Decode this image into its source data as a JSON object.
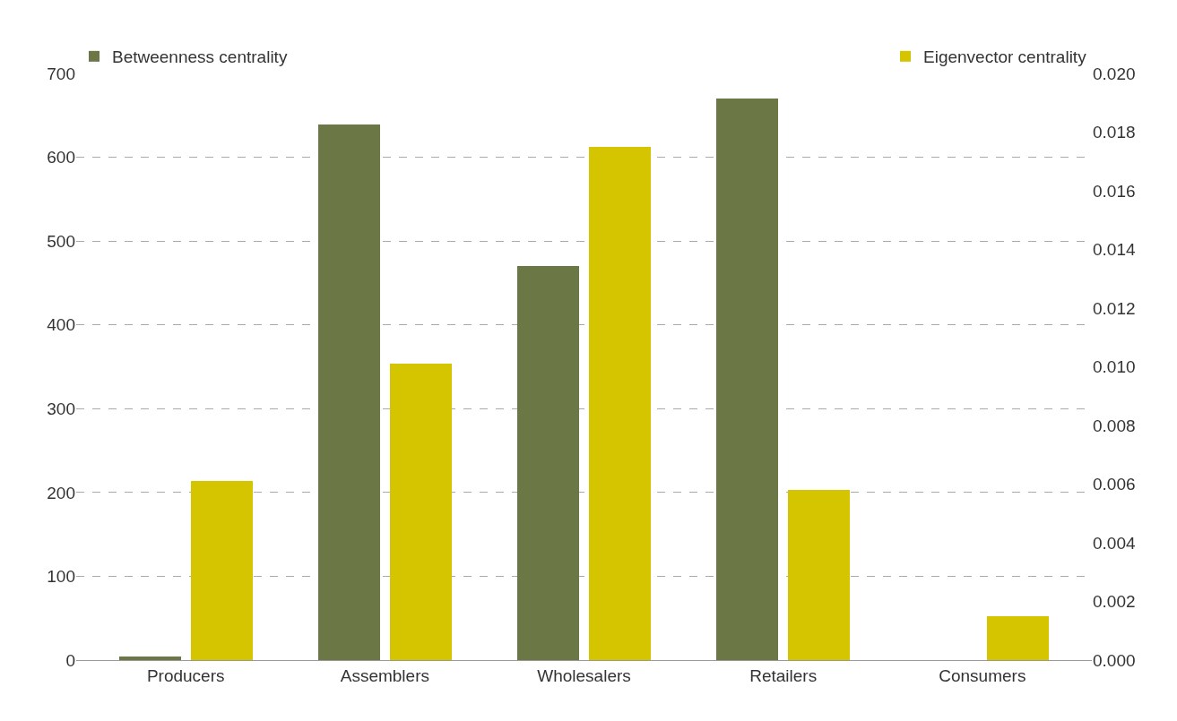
{
  "chart_data": {
    "type": "bar",
    "categories": [
      "Producers",
      "Assemblers",
      "Wholesalers",
      "Retailers",
      "Consumers"
    ],
    "series": [
      {
        "name": "Betweenness centrality",
        "color": "#6b7845",
        "values": [
          4,
          639,
          470,
          670,
          0
        ]
      },
      {
        "name": "Eigenvector centrality",
        "color": "#d5c500",
        "axis": "y2",
        "values": [
          0.0061,
          0.0101,
          0.0175,
          0.0058,
          0.0015
        ]
      }
    ],
    "ylim": [
      0,
      700
    ],
    "yticks": [
      0,
      100,
      200,
      300,
      400,
      500,
      600,
      700
    ],
    "y2lim": [
      0,
      0.02
    ],
    "y2ticks": [
      {
        "value": 0,
        "label": "0.000"
      },
      {
        "value": 0.002,
        "label": "0.002"
      },
      {
        "value": 0.004,
        "label": "0.004"
      },
      {
        "value": 0.006,
        "label": "0.006"
      },
      {
        "value": 0.008,
        "label": "0.008"
      },
      {
        "value": 0.01,
        "label": "0.010"
      },
      {
        "value": 0.012,
        "label": "0.012"
      },
      {
        "value": 0.014,
        "label": "0.014"
      },
      {
        "value": 0.016,
        "label": "0.016"
      },
      {
        "value": 0.018,
        "label": "0.018"
      },
      {
        "value": 0.02,
        "label": "0.020"
      }
    ],
    "grid": "y",
    "legend": "top"
  }
}
